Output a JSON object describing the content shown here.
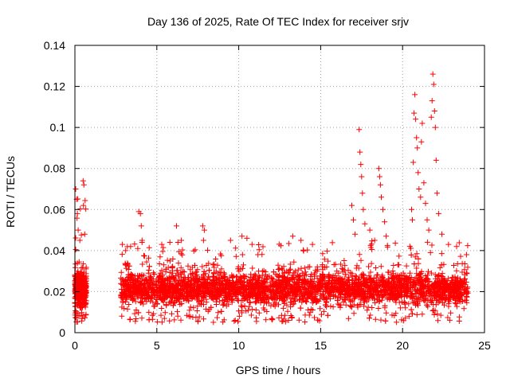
{
  "chart_data": {
    "type": "scatter",
    "title": "Day 136 of 2025, Rate Of TEC Index for receiver srjv",
    "xlabel": "GPS time / hours",
    "ylabel": "ROTI / TECUs",
    "xlim": [
      0,
      25
    ],
    "ylim": [
      0,
      0.14
    ],
    "xticks": [
      0,
      5,
      10,
      15,
      20,
      25
    ],
    "xtick_labels": [
      "0",
      "5",
      "10",
      "15",
      "20",
      "25"
    ],
    "yticks": [
      0,
      0.02,
      0.04,
      0.06,
      0.08,
      0.1,
      0.12,
      0.14
    ],
    "ytick_labels": [
      "0",
      "0.02",
      "0.04",
      "0.06",
      "0.08",
      "0.1",
      "0.12",
      "0.14"
    ],
    "grid": true,
    "marker": "+",
    "series_color": "#ff0000",
    "segments": [
      {
        "x": [
          0.0,
          0.7
        ],
        "typical": [
          0.005,
          0.03
        ],
        "peak": 0.075
      },
      {
        "x": [
          2.8,
          24.0
        ],
        "typical": [
          0.005,
          0.03
        ],
        "peak": 0.045
      }
    ],
    "outliers": [
      {
        "x": 0.05,
        "y": 0.07
      },
      {
        "x": 0.1,
        "y": 0.065
      },
      {
        "x": 0.15,
        "y": 0.058
      },
      {
        "x": 0.2,
        "y": 0.05
      },
      {
        "x": 0.3,
        "y": 0.045
      },
      {
        "x": 0.5,
        "y": 0.074
      },
      {
        "x": 0.55,
        "y": 0.072
      },
      {
        "x": 0.52,
        "y": 0.062
      },
      {
        "x": 0.6,
        "y": 0.048
      },
      {
        "x": 2.9,
        "y": 0.043
      },
      {
        "x": 3.1,
        "y": 0.04
      },
      {
        "x": 3.4,
        "y": 0.042
      },
      {
        "x": 3.9,
        "y": 0.059
      },
      {
        "x": 4.0,
        "y": 0.058
      },
      {
        "x": 4.05,
        "y": 0.052
      },
      {
        "x": 4.1,
        "y": 0.045
      },
      {
        "x": 5.3,
        "y": 0.043
      },
      {
        "x": 5.8,
        "y": 0.044
      },
      {
        "x": 6.2,
        "y": 0.052
      },
      {
        "x": 6.5,
        "y": 0.045
      },
      {
        "x": 7.8,
        "y": 0.052
      },
      {
        "x": 7.9,
        "y": 0.05
      },
      {
        "x": 7.85,
        "y": 0.045
      },
      {
        "x": 9.5,
        "y": 0.045
      },
      {
        "x": 10.2,
        "y": 0.047
      },
      {
        "x": 10.5,
        "y": 0.046
      },
      {
        "x": 13.3,
        "y": 0.047
      },
      {
        "x": 13.8,
        "y": 0.045
      },
      {
        "x": 14.5,
        "y": 0.043
      },
      {
        "x": 16.9,
        "y": 0.062
      },
      {
        "x": 17.0,
        "y": 0.055
      },
      {
        "x": 17.1,
        "y": 0.048
      },
      {
        "x": 17.35,
        "y": 0.099
      },
      {
        "x": 17.4,
        "y": 0.088
      },
      {
        "x": 17.45,
        "y": 0.082
      },
      {
        "x": 17.5,
        "y": 0.076
      },
      {
        "x": 17.55,
        "y": 0.068
      },
      {
        "x": 17.6,
        "y": 0.06
      },
      {
        "x": 17.7,
        "y": 0.053
      },
      {
        "x": 18.0,
        "y": 0.05
      },
      {
        "x": 18.3,
        "y": 0.045
      },
      {
        "x": 18.55,
        "y": 0.08
      },
      {
        "x": 18.6,
        "y": 0.076
      },
      {
        "x": 18.65,
        "y": 0.072
      },
      {
        "x": 18.7,
        "y": 0.066
      },
      {
        "x": 18.8,
        "y": 0.06
      },
      {
        "x": 18.9,
        "y": 0.054
      },
      {
        "x": 19.0,
        "y": 0.047
      },
      {
        "x": 20.55,
        "y": 0.06
      },
      {
        "x": 20.6,
        "y": 0.055
      },
      {
        "x": 20.65,
        "y": 0.083
      },
      {
        "x": 20.7,
        "y": 0.107
      },
      {
        "x": 20.75,
        "y": 0.116
      },
      {
        "x": 20.8,
        "y": 0.104
      },
      {
        "x": 20.85,
        "y": 0.095
      },
      {
        "x": 20.9,
        "y": 0.09
      },
      {
        "x": 20.95,
        "y": 0.078
      },
      {
        "x": 21.0,
        "y": 0.07
      },
      {
        "x": 21.1,
        "y": 0.066
      },
      {
        "x": 21.15,
        "y": 0.093
      },
      {
        "x": 21.2,
        "y": 0.102
      },
      {
        "x": 21.3,
        "y": 0.073
      },
      {
        "x": 21.4,
        "y": 0.063
      },
      {
        "x": 21.5,
        "y": 0.055
      },
      {
        "x": 21.6,
        "y": 0.05
      },
      {
        "x": 21.75,
        "y": 0.105
      },
      {
        "x": 21.8,
        "y": 0.113
      },
      {
        "x": 21.85,
        "y": 0.126
      },
      {
        "x": 21.9,
        "y": 0.121
      },
      {
        "x": 21.95,
        "y": 0.108
      },
      {
        "x": 22.0,
        "y": 0.1
      },
      {
        "x": 22.05,
        "y": 0.084
      },
      {
        "x": 22.1,
        "y": 0.068
      },
      {
        "x": 22.2,
        "y": 0.058
      },
      {
        "x": 22.4,
        "y": 0.048
      },
      {
        "x": 22.8,
        "y": 0.043
      },
      {
        "x": 23.3,
        "y": 0.042
      },
      {
        "x": 23.9,
        "y": 0.038
      }
    ],
    "bulk_point_count": 3400,
    "random_seed": 136
  }
}
